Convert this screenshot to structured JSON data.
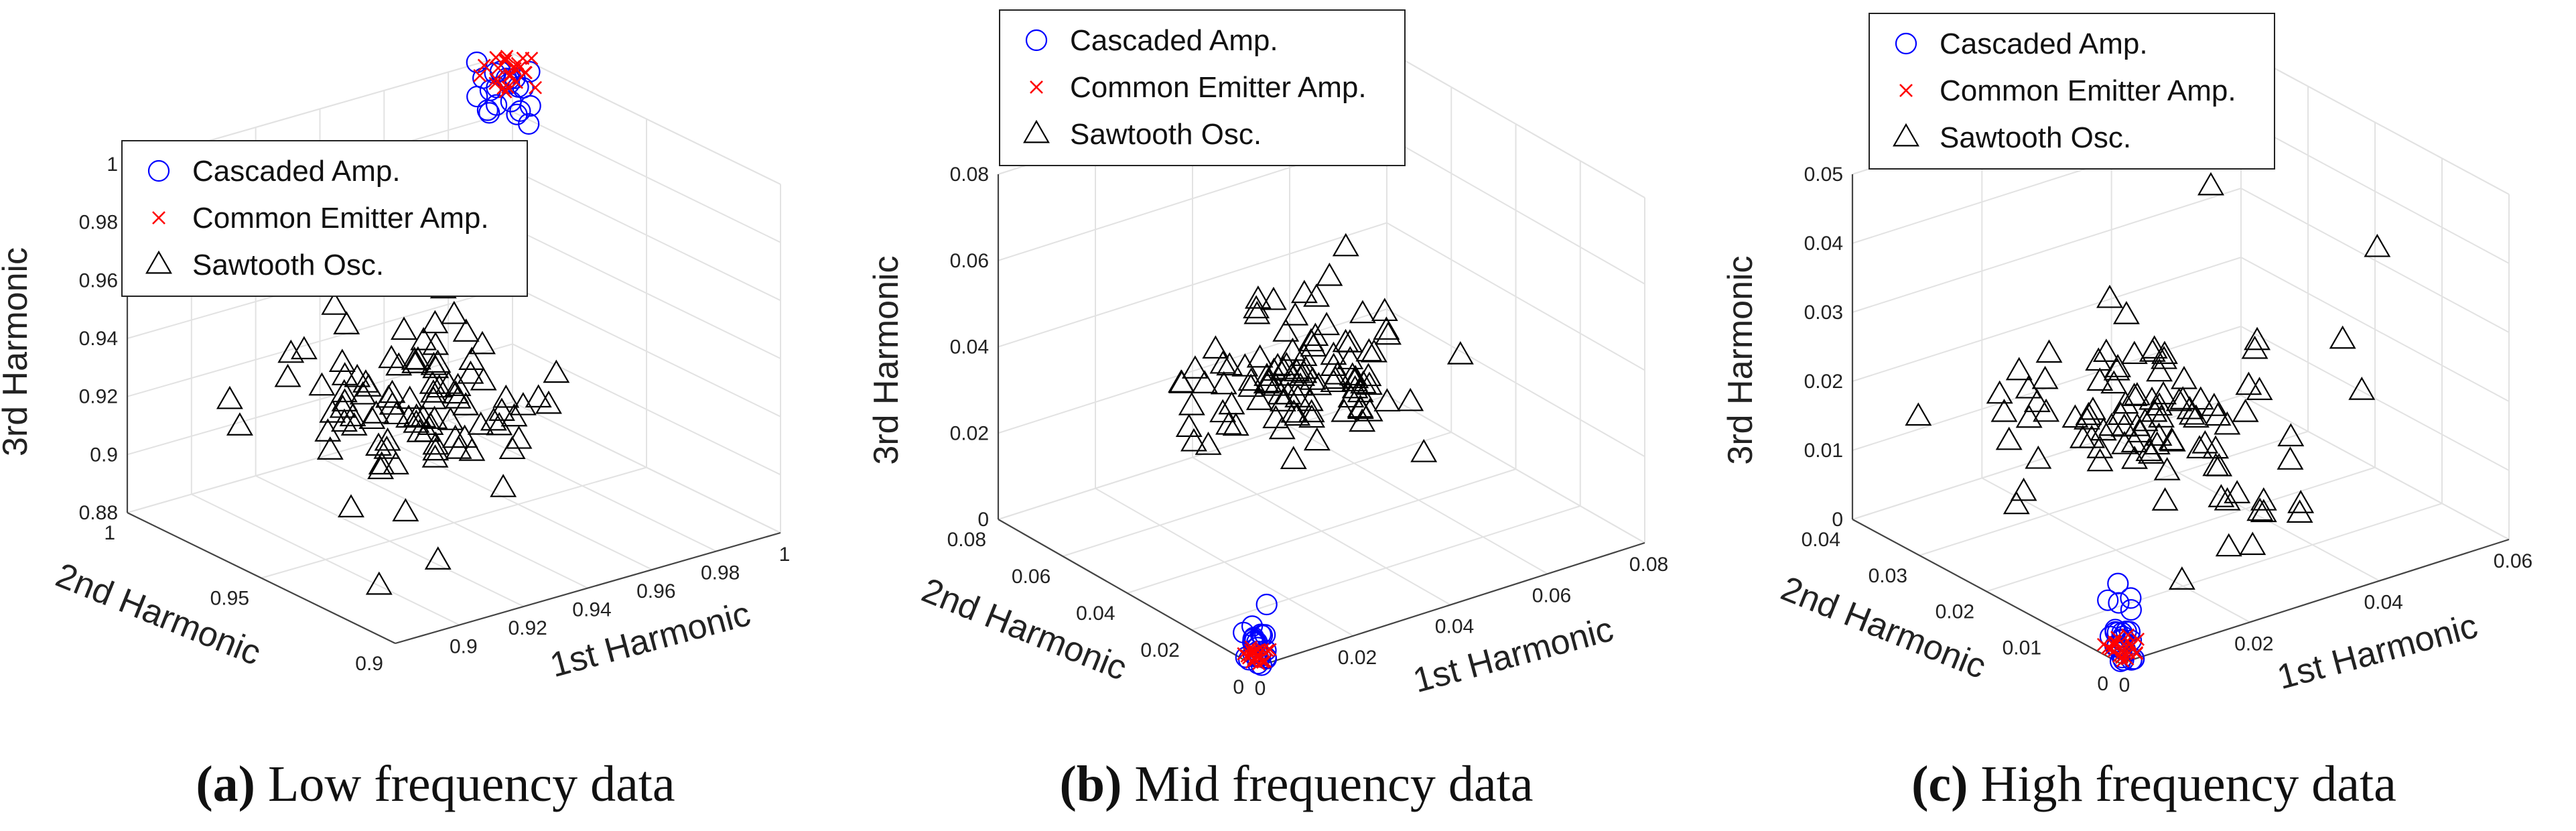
{
  "figure": {
    "captions": [
      {
        "label": "(a)",
        "text": "Low frequency data"
      },
      {
        "label": "(b)",
        "text": "Mid frequency data"
      },
      {
        "label": "(c)",
        "text": "High frequency data"
      }
    ]
  },
  "legend": {
    "entries": [
      {
        "label": "Cascaded Amp.",
        "marker": "circle",
        "color": "#0000ff"
      },
      {
        "label": "Common Emitter Amp.",
        "marker": "x",
        "color": "#ff0000"
      },
      {
        "label": "Sawtooth Osc.",
        "marker": "triangle",
        "color": "#000000"
      }
    ]
  },
  "chart_data": [
    {
      "type": "scatter3d",
      "title": "Low frequency data",
      "xlabel": "1st Harmonic",
      "ylabel": "2nd Harmonic",
      "zlabel": "3rd Harmonic",
      "xlim": [
        0.88,
        1
      ],
      "ylim": [
        0.9,
        1
      ],
      "zlim": [
        0.88,
        1
      ],
      "xticks": [
        "0.9",
        "0.92",
        "0.94",
        "0.96",
        "0.98",
        "1"
      ],
      "yticks": [
        "0.9",
        "0.95",
        "1"
      ],
      "zticks": [
        "0.88",
        "0.9",
        "0.92",
        "0.94",
        "0.96",
        "0.98",
        "1"
      ],
      "legend_position": "top-left",
      "series": [
        {
          "name": "Cascaded Amp.",
          "marker": "circle",
          "color": "#0000ff",
          "cluster": {
            "center": [
              0.985,
              0.985,
              1.0
            ],
            "spread": [
              0.004,
              0.004,
              0.006
            ],
            "count": 22
          }
        },
        {
          "name": "Common Emitter Amp.",
          "marker": "x",
          "color": "#ff0000",
          "cluster": {
            "center": [
              0.985,
              0.985,
              1.005
            ],
            "spread": [
              0.004,
              0.004,
              0.003
            ],
            "count": 24
          }
        },
        {
          "name": "Sawtooth Osc.",
          "marker": "triangle",
          "color": "#000000",
          "cluster": {
            "center": [
              0.93,
              0.95,
              0.925
            ],
            "spread": [
              0.015,
              0.015,
              0.012
            ],
            "count": 95
          },
          "outliers": [
            [
              0.95,
              0.99,
              0.94
            ],
            [
              0.89,
              0.97,
              0.92
            ],
            [
              0.9,
              0.93,
              0.88
            ],
            [
              0.91,
              0.92,
              0.89
            ]
          ]
        }
      ]
    },
    {
      "type": "scatter3d",
      "title": "Mid frequency data",
      "xlabel": "1st Harmonic",
      "ylabel": "2nd Harmonic",
      "zlabel": "3rd Harmonic",
      "xlim": [
        0,
        0.08
      ],
      "ylim": [
        0,
        0.08
      ],
      "zlim": [
        0,
        0.08
      ],
      "xticks": [
        "0",
        "0.02",
        "0.04",
        "0.06",
        "0.08"
      ],
      "yticks": [
        "0",
        "0.02",
        "0.04",
        "0.06",
        "0.08"
      ],
      "zticks": [
        "0",
        "0.02",
        "0.04",
        "0.06",
        "0.08"
      ],
      "legend_position": "top-left",
      "series": [
        {
          "name": "Cascaded Amp.",
          "marker": "circle",
          "color": "#0000ff",
          "cluster": {
            "center": [
              0.002,
              0.002,
              0.003
            ],
            "spread": [
              0.0015,
              0.0015,
              0.003
            ],
            "count": 24
          }
        },
        {
          "name": "Common Emitter Amp.",
          "marker": "x",
          "color": "#ff0000",
          "cluster": {
            "center": [
              0.002,
              0.002,
              0.001
            ],
            "spread": [
              0.0015,
              0.0015,
              0.001
            ],
            "count": 22
          }
        },
        {
          "name": "Sawtooth Osc.",
          "marker": "triangle",
          "color": "#000000",
          "cluster": {
            "center": [
              0.03,
              0.035,
              0.04
            ],
            "spread": [
              0.01,
              0.01,
              0.007
            ],
            "count": 95
          },
          "outliers": [
            [
              0.06,
              0.05,
              0.035
            ],
            [
              0.035,
              0.03,
              0.065
            ],
            [
              0.045,
              0.04,
              0.064
            ]
          ]
        }
      ]
    },
    {
      "type": "scatter3d",
      "title": "High frequency data",
      "xlabel": "1st Harmonic",
      "ylabel": "2nd Harmonic",
      "zlabel": "3rd Harmonic",
      "xlim": [
        0,
        0.06
      ],
      "ylim": [
        0,
        0.04
      ],
      "zlim": [
        0,
        0.05
      ],
      "xticks": [
        "0",
        "0.02",
        "0.04",
        "0.06"
      ],
      "yticks": [
        "0",
        "0.01",
        "0.02",
        "0.03",
        "0.04"
      ],
      "zticks": [
        "0",
        "0.01",
        "0.02",
        "0.03",
        "0.04",
        "0.05"
      ],
      "legend_position": "top-left",
      "series": [
        {
          "name": "Cascaded Amp.",
          "marker": "circle",
          "color": "#0000ff",
          "cluster": {
            "center": [
              0.0015,
              0.0015,
              0.003
            ],
            "spread": [
              0.001,
              0.001,
              0.003
            ],
            "count": 26
          }
        },
        {
          "name": "Common Emitter Amp.",
          "marker": "x",
          "color": "#ff0000",
          "cluster": {
            "center": [
              0.0015,
              0.0015,
              0.001
            ],
            "spread": [
              0.001,
              0.001,
              0.001
            ],
            "count": 22
          }
        },
        {
          "name": "Sawtooth Osc.",
          "marker": "triangle",
          "color": "#000000",
          "cluster": {
            "center": [
              0.025,
              0.02,
              0.016
            ],
            "spread": [
              0.008,
              0.008,
              0.006
            ],
            "count": 95
          },
          "outliers": [
            [
              0.005,
              0.035,
              0.016
            ],
            [
              0.05,
              0.01,
              0.04
            ],
            [
              0.055,
              0.02,
              0.02
            ],
            [
              0.045,
              0.03,
              0.04
            ]
          ]
        }
      ]
    }
  ]
}
